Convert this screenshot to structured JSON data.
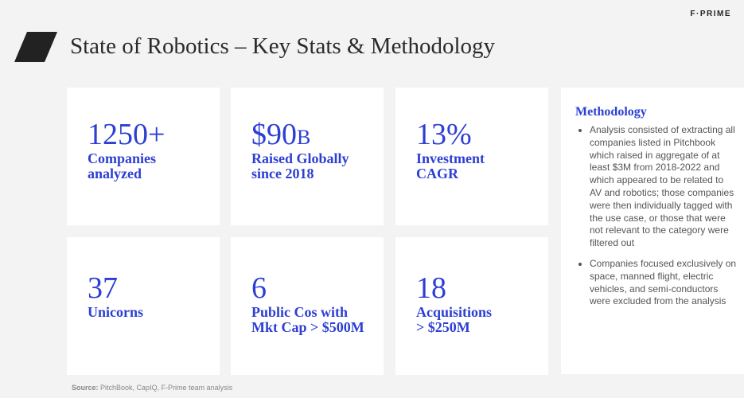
{
  "logo": "F·PRIME",
  "title": "State of Robotics – Key Stats & Methodology",
  "stats": [
    {
      "value": "1250+",
      "label_lines": [
        "Companies",
        "analyzed"
      ]
    },
    {
      "value": "$90",
      "unit": "B",
      "label_lines": [
        "Raised Globally",
        "since 2018"
      ]
    },
    {
      "value": "13%",
      "label_lines": [
        "Investment",
        "CAGR"
      ]
    },
    {
      "value": "37",
      "label_lines": [
        "Unicorns"
      ]
    },
    {
      "value": "6",
      "label_lines": [
        "Public Cos with",
        "Mkt Cap > $500M"
      ]
    },
    {
      "value": "18",
      "label_lines": [
        "Acquisitions",
        "> $250M"
      ]
    }
  ],
  "methodology": {
    "title": "Methodology",
    "bullets": [
      "Analysis consisted of extracting all companies listed in Pitchbook which raised in aggregate of at least $3M from 2018-2022 and which appeared to be related to AV and robotics; those companies were then individually tagged with the use case, or those that were not relevant to the category were filtered out",
      "Companies focused exclusively on space, manned flight, electric vehicles, and semi-conductors were excluded from the analysis"
    ]
  },
  "source": {
    "label": "Source:",
    "text": "PitchBook, CapIQ, F-Prime team analysis"
  }
}
